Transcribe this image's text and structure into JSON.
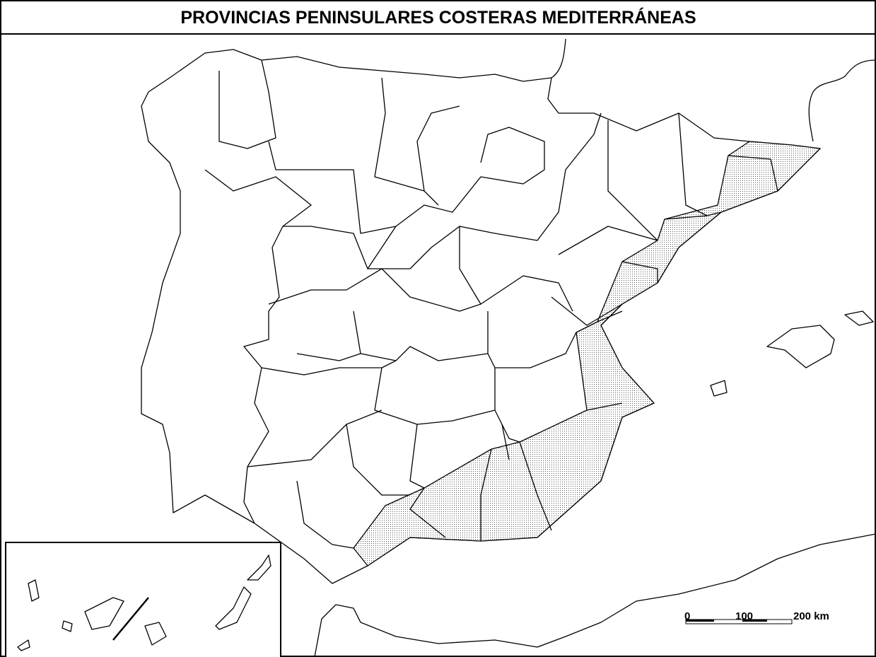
{
  "header": {
    "title": "PROVINCIAS PENINSULARES COSTERAS MEDITERRÁNEAS"
  },
  "scale": {
    "labels": [
      "0",
      "100",
      "200 km"
    ]
  }
}
